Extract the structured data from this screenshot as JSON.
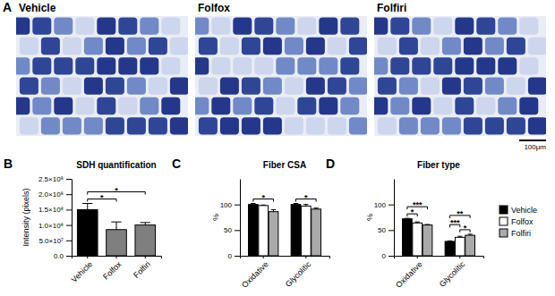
{
  "image_panel": {
    "label": "A",
    "images": [
      {
        "title": "Vehicle"
      },
      {
        "title": "Folfox"
      },
      {
        "title": "Folfiri"
      }
    ],
    "scale_bar": "100μm"
  },
  "chart_data": [
    {
      "type": "bar",
      "panel_label": "B",
      "title": "SDH quantification",
      "y_label": "Intensity (pixels)",
      "categories": [
        "Vehicle",
        "Folfox",
        "Folfiri"
      ],
      "values": [
        150000000,
        85000000,
        100000000
      ],
      "errors": [
        20000000,
        25000000,
        8000000
      ],
      "colors": [
        "#000000",
        "#7f7f7f",
        "#7f7f7f"
      ],
      "ylim": [
        0,
        250000000
      ],
      "yticks": [
        {
          "value": 0,
          "label": "0.0"
        },
        {
          "value": 50000000,
          "label": "5.0×10⁷"
        },
        {
          "value": 100000000,
          "label": "1.0×10⁸"
        },
        {
          "value": 150000000,
          "label": "1.5×10⁸"
        },
        {
          "value": 200000000,
          "label": "2.0×10⁸"
        },
        {
          "value": 250000000,
          "label": "2.5×10⁸"
        }
      ],
      "significance": [
        {
          "from": "Vehicle",
          "to": "Folfox",
          "label": "*"
        },
        {
          "from": "Vehicle",
          "to": "Folfiri",
          "label": "*"
        }
      ]
    },
    {
      "type": "bar",
      "panel_label": "C",
      "title": "Fiber CSA",
      "y_label": "%",
      "categories": [
        "Oxidative",
        "Glycolitic"
      ],
      "series": [
        {
          "name": "Vehicle",
          "color": "#000000",
          "values": [
            100,
            100
          ],
          "errors": [
            2,
            2
          ]
        },
        {
          "name": "Folfox",
          "color": "#ffffff",
          "values": [
            98,
            97
          ],
          "errors": [
            1,
            3
          ]
        },
        {
          "name": "Folfiri",
          "color": "#aaaaaa",
          "values": [
            86,
            91
          ],
          "errors": [
            4,
            2
          ]
        }
      ],
      "ylim": [
        0,
        150
      ],
      "yticks": [
        0,
        50,
        100
      ],
      "significance": [
        {
          "category": "Oxidative",
          "from": "Vehicle",
          "to": "Folfiri",
          "label": "*"
        },
        {
          "category": "Glycolitic",
          "from": "Vehicle",
          "to": "Folfiri",
          "label": "*"
        }
      ]
    },
    {
      "type": "bar",
      "panel_label": "D",
      "title": "Fiber type",
      "y_label": "%",
      "categories": [
        "Oxidative",
        "Glycolitic"
      ],
      "series": [
        {
          "name": "Vehicle",
          "color": "#000000",
          "values": [
            72,
            28
          ],
          "errors": [
            1,
            1
          ]
        },
        {
          "name": "Folfox",
          "color": "#ffffff",
          "values": [
            64,
            36
          ],
          "errors": [
            2,
            2
          ]
        },
        {
          "name": "Folfiri",
          "color": "#aaaaaa",
          "values": [
            60,
            40
          ],
          "errors": [
            1,
            2
          ]
        }
      ],
      "ylim": [
        0,
        150
      ],
      "yticks": [
        0,
        50,
        100
      ],
      "legend": "right",
      "significance": [
        {
          "category": "Oxidative",
          "from": "Vehicle",
          "to": "Folfox",
          "label": "*"
        },
        {
          "category": "Oxidative",
          "from": "Vehicle",
          "to": "Folfiri",
          "label": "***"
        },
        {
          "category": "Glycolitic",
          "from": "Folfox",
          "to": "Folfiri",
          "label": "*"
        },
        {
          "category": "Glycolitic",
          "from": "Vehicle",
          "to": "Folfox",
          "label": "***"
        },
        {
          "category": "Glycolitic",
          "from": "Vehicle",
          "to": "Folfiri",
          "label": "**"
        }
      ]
    }
  ]
}
